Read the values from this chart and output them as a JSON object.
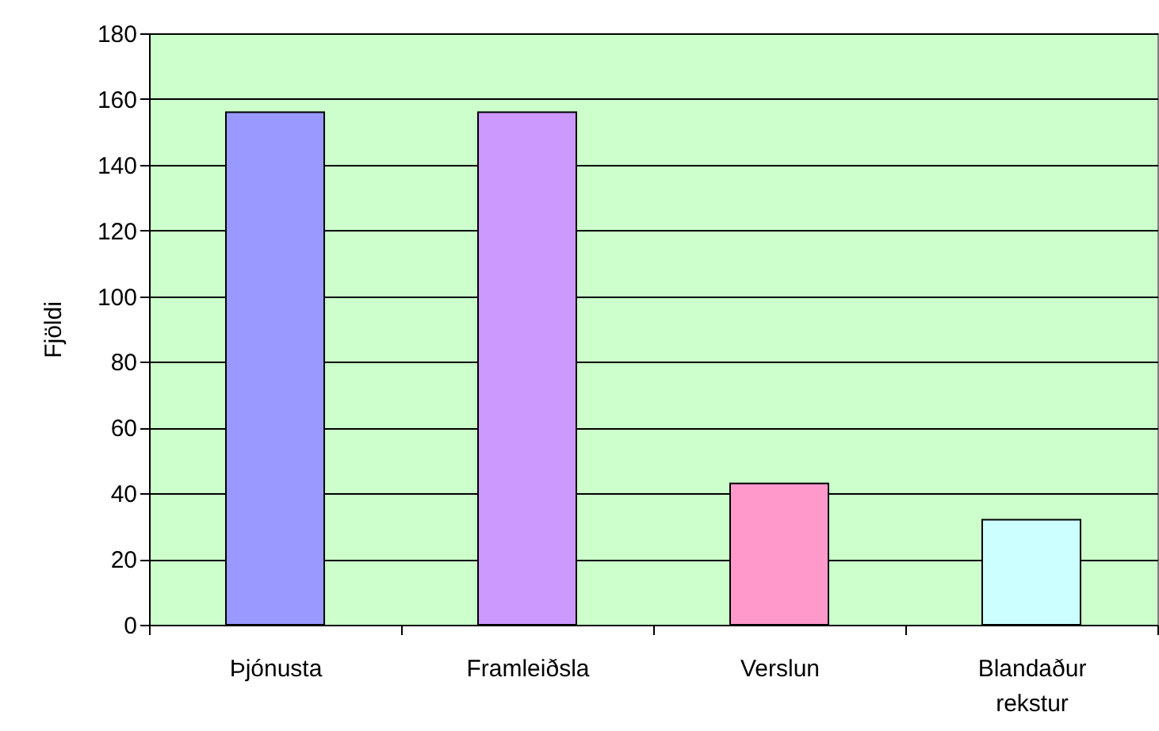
{
  "chart_data": {
    "type": "bar",
    "ylabel": "Fjöldi",
    "categories": [
      "Þjónusta",
      "Framleiðsla",
      "Verslun",
      "Blandaður rekstur"
    ],
    "values": [
      156,
      156,
      43,
      32
    ],
    "colors": [
      "#9999ff",
      "#cc99ff",
      "#ff99cc",
      "#ccffff"
    ],
    "ylim": [
      0,
      180
    ],
    "yticks": [
      0,
      20,
      40,
      60,
      80,
      100,
      120,
      140,
      160,
      180
    ],
    "grid": "y"
  }
}
